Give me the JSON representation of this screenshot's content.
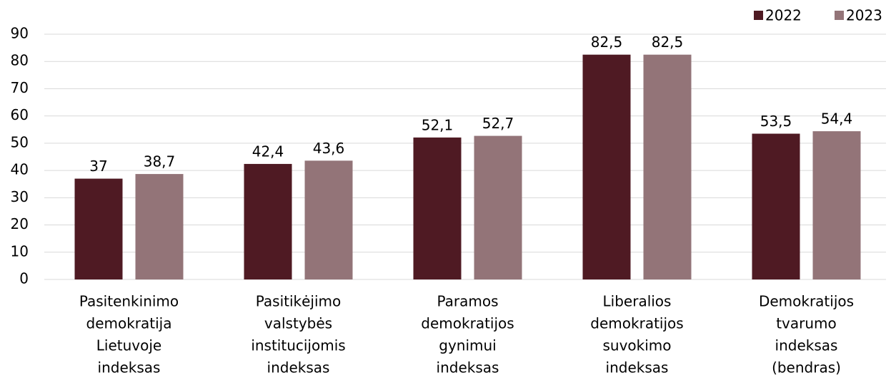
{
  "chart_data": {
    "type": "bar",
    "categories": [
      [
        "Pasitenkinimo",
        "demokratija",
        "Lietuvoje",
        "indeksas"
      ],
      [
        "Pasitikėjimo",
        "valstybės",
        "institucijomis",
        "indeksas"
      ],
      [
        "Paramos",
        "demokratijos",
        "gynimui",
        "indeksas"
      ],
      [
        "Liberalios",
        "demokratijos",
        "suvokimo",
        "indeksas"
      ],
      [
        "Demokratijos",
        "tvarumo",
        "indeksas",
        "(bendras)"
      ]
    ],
    "series": [
      {
        "name": "2022",
        "color": "#4f1a23",
        "values": [
          37,
          42.4,
          52.1,
          82.5,
          53.5
        ],
        "value_labels": [
          "37",
          "42,4",
          "52,1",
          "82,5",
          "53,5"
        ]
      },
      {
        "name": "2023",
        "color": "#937478",
        "values": [
          38.7,
          43.6,
          52.7,
          82.5,
          54.4
        ],
        "value_labels": [
          "38,7",
          "43,6",
          "52,7",
          "82,5",
          "54,4"
        ]
      }
    ],
    "ylim": [
      0,
      90
    ],
    "yticks": [
      0,
      10,
      20,
      30,
      40,
      50,
      60,
      70,
      80,
      90
    ],
    "grid": true,
    "legend": "top-right"
  }
}
